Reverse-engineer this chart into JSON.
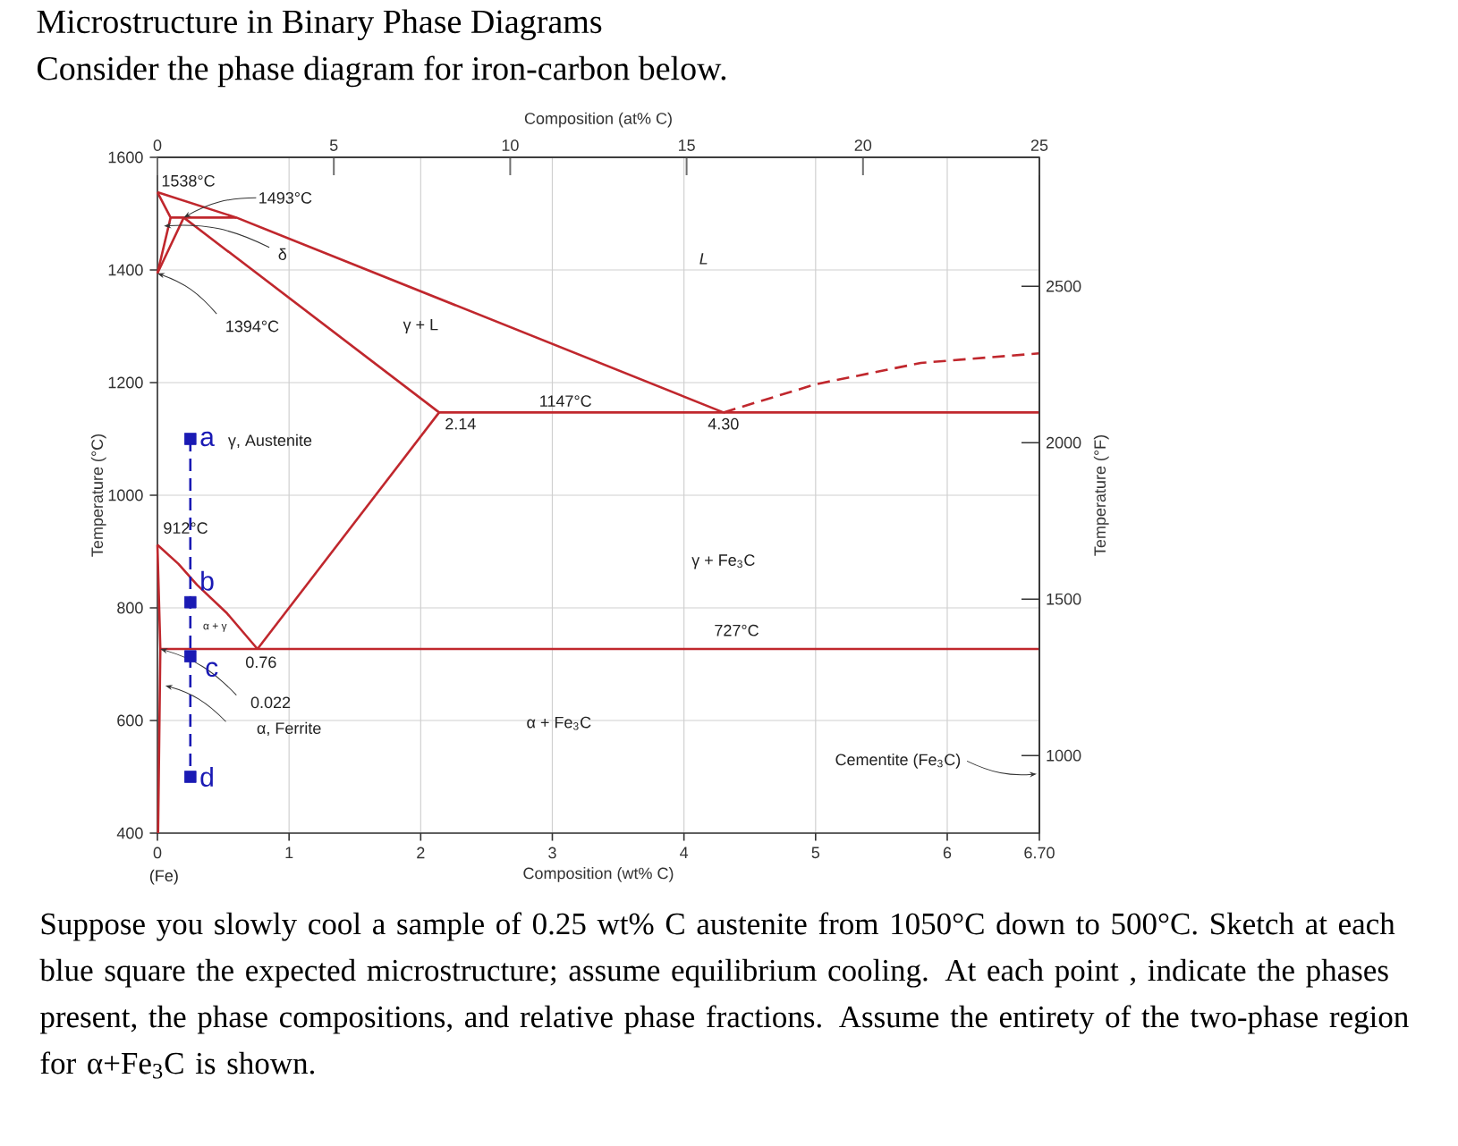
{
  "chart_data": {
    "type": "line",
    "title": "Microstructure in Binary Phase Diagrams",
    "subtitle": "Consider the phase diagram for iron-carbon below.",
    "xlabel": "Composition (wt% C)",
    "x2label": "Composition (at% C)",
    "ylabel": "Temperature (°C)",
    "y2label": "Temperature (°F)",
    "xlim": [
      0,
      6.7
    ],
    "xticks": [
      0,
      1,
      2,
      3,
      4,
      5,
      6,
      {
        "value": 6.7,
        "label": "6.70"
      }
    ],
    "x2lim": [
      0,
      25
    ],
    "x2ticks": [
      0,
      5,
      10,
      15,
      20,
      25
    ],
    "ylim": [
      400,
      1600
    ],
    "yticks": [
      400,
      600,
      800,
      1000,
      1200,
      1400,
      1600
    ],
    "y2lim": [
      752,
      2912
    ],
    "y2ticks": [
      1000,
      1500,
      2000,
      2500
    ],
    "grid": true,
    "series": [
      {
        "color": "#c0272d",
        "x": [
          0,
          0.6,
          4.3
        ],
        "values": [
          1538,
          1493,
          1147
        ]
      },
      {
        "color": "#c0272d",
        "x": [
          4.3,
          5.0,
          5.8,
          6.7
        ],
        "values": [
          1147,
          1197,
          1235,
          1252
        ],
        "line_style": "dashed"
      },
      {
        "color": "#c0272d",
        "x": [
          0,
          0.1,
          0
        ],
        "values": [
          1538,
          1493,
          1394
        ]
      },
      {
        "color": "#c0272d",
        "x": [
          0.1,
          0.6
        ],
        "values": [
          1493,
          1493
        ]
      },
      {
        "color": "#c0272d",
        "x": [
          0,
          0.2,
          2.14
        ],
        "values": [
          1394,
          1493,
          1147
        ]
      },
      {
        "color": "#c0272d",
        "x": [
          2.14,
          6.7
        ],
        "values": [
          1147,
          1147
        ]
      },
      {
        "color": "#c0272d",
        "x": [
          2.14,
          0.76
        ],
        "values": [
          1147,
          727
        ]
      },
      {
        "color": "#c0272d",
        "x": [
          0,
          0.16,
          0.3,
          0.53,
          0.76
        ],
        "values": [
          912,
          878,
          841,
          790,
          727
        ]
      },
      {
        "color": "#c0272d",
        "x": [
          0,
          0.022,
          0.005
        ],
        "values": [
          912,
          727,
          400
        ]
      },
      {
        "color": "#c0272d",
        "x": [
          0.022,
          6.7
        ],
        "values": [
          727,
          727
        ]
      },
      {
        "color": "#1a1ab4",
        "x": [
          0.25,
          0.25
        ],
        "values": [
          1100,
          500
        ],
        "line_style": "dashed"
      },
      {
        "type": "scatter",
        "color": "#1a1ab4",
        "marker": "square",
        "x": [
          0.25,
          0.25,
          0.25,
          0.25
        ],
        "values": [
          1100,
          810,
          714,
          500
        ]
      }
    ],
    "annotations": [
      {
        "text": "1538°C",
        "x": 0,
        "y": 1538
      },
      {
        "text": "1493°C",
        "x": 0.2,
        "y": 1493
      },
      {
        "text": "δ",
        "x": 0.05,
        "y": 1478
      },
      {
        "text": "1394°C",
        "x": 0,
        "y": 1394
      },
      "γ + L",
      "L",
      {
        "text": "1147°C",
        "x": 3.1,
        "y": 1147
      },
      {
        "text": "2.14",
        "x": 2.14,
        "y": 1147
      },
      {
        "text": "4.30",
        "x": 4.3,
        "y": 1147
      },
      "γ, Austenite",
      {
        "text": "912°C",
        "x": 0,
        "y": 912
      },
      "γ + Fe$_{3}$C",
      {
        "text": "727°C",
        "x": 4.4,
        "y": 727
      },
      {
        "text": "0.76",
        "x": 0.76,
        "y": 727
      },
      {
        "text": "0.022",
        "x": 0.022,
        "y": 727
      },
      "α, Ferrite",
      "α + Fe$_{3}$C",
      "Cementite (Fe$_{3}$C)",
      "(Fe)",
      {
        "text": "a",
        "x": 0.25,
        "y": 1100
      },
      {
        "text": "b",
        "x": 0.25,
        "y": 810
      },
      {
        "text": "c",
        "x": 0.25,
        "y": 714
      },
      {
        "text": "d",
        "x": 0.25,
        "y": 500
      },
      "α + γ",
      "Suppose you slowly cool a sample of 0.25 wt% C austenite from 1050°C down to 500°C. Sketch at each blue square the expected microstructure; assume equilibrium cooling. At each point , indicate the phases present, the phase compositions, and relative phase fractions. Assume the entirety of the two-phase region for α+Fe$_{3}$C is shown."
    ]
  }
}
